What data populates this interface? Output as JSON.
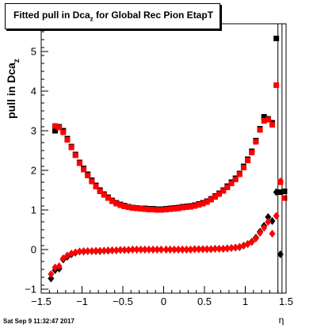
{
  "chart_data": {
    "type": "scatter",
    "title": {
      "main": "Fitted pull in Dca",
      "sub": "z",
      "rest": " for Global Rec Pion EtapT"
    },
    "ylabel": {
      "main": "pull in Dca",
      "sub": "z"
    },
    "xlabel": "η",
    "xlim": [
      -1.5,
      1.5
    ],
    "ylim": [
      -1.1,
      5.7
    ],
    "x_major_ticks": [
      -1.5,
      -1,
      -0.5,
      0,
      0.5,
      1,
      1.5
    ],
    "x_tick_labels": [
      "−1.5",
      "−1",
      "−0.5",
      "0",
      "0.5",
      "1",
      "1.5"
    ],
    "y_major_ticks": [
      -1,
      0,
      1,
      2,
      3,
      4,
      5
    ],
    "y_tick_labels": [
      "−1",
      "0",
      "1",
      "2",
      "3",
      "4",
      "5"
    ],
    "grid": false,
    "colors": {
      "black": "#000000",
      "red": "#ff0000",
      "guide": "#000000"
    },
    "series": [
      {
        "marker": "square",
        "color": "#000000",
        "points": [
          [
            -1.33,
            3.0
          ],
          [
            -1.28,
            3.1
          ],
          [
            -1.23,
            3.0
          ],
          [
            -1.18,
            2.8
          ],
          [
            -1.13,
            2.6
          ],
          [
            -1.08,
            2.4
          ],
          [
            -1.03,
            2.2
          ],
          [
            -0.98,
            2.05
          ],
          [
            -0.93,
            1.9
          ],
          [
            -0.88,
            1.75
          ],
          [
            -0.83,
            1.62
          ],
          [
            -0.78,
            1.5
          ],
          [
            -0.73,
            1.4
          ],
          [
            -0.68,
            1.32
          ],
          [
            -0.63,
            1.24
          ],
          [
            -0.58,
            1.18
          ],
          [
            -0.53,
            1.14
          ],
          [
            -0.48,
            1.11
          ],
          [
            -0.43,
            1.08
          ],
          [
            -0.38,
            1.06
          ],
          [
            -0.33,
            1.05
          ],
          [
            -0.28,
            1.04
          ],
          [
            -0.23,
            1.04
          ],
          [
            -0.18,
            1.03
          ],
          [
            -0.13,
            1.03
          ],
          [
            -0.08,
            1.02
          ],
          [
            -0.03,
            1.02
          ],
          [
            0.03,
            1.03
          ],
          [
            0.08,
            1.04
          ],
          [
            0.13,
            1.05
          ],
          [
            0.18,
            1.06
          ],
          [
            0.23,
            1.08
          ],
          [
            0.28,
            1.09
          ],
          [
            0.33,
            1.1
          ],
          [
            0.38,
            1.12
          ],
          [
            0.43,
            1.15
          ],
          [
            0.48,
            1.18
          ],
          [
            0.53,
            1.22
          ],
          [
            0.58,
            1.28
          ],
          [
            0.63,
            1.35
          ],
          [
            0.68,
            1.42
          ],
          [
            0.73,
            1.5
          ],
          [
            0.78,
            1.6
          ],
          [
            0.83,
            1.7
          ],
          [
            0.88,
            1.8
          ],
          [
            0.93,
            1.92
          ],
          [
            0.98,
            2.1
          ],
          [
            1.03,
            2.28
          ],
          [
            1.08,
            2.48
          ],
          [
            1.13,
            2.75
          ],
          [
            1.18,
            3.05
          ],
          [
            1.23,
            3.35
          ],
          [
            1.28,
            3.3
          ],
          [
            1.33,
            3.2
          ],
          [
            1.38,
            5.33
          ],
          [
            1.43,
            1.45
          ],
          [
            1.48,
            1.47
          ]
        ]
      },
      {
        "marker": "square",
        "color": "#ff0000",
        "points": [
          [
            -1.33,
            3.12
          ],
          [
            -1.28,
            3.08
          ],
          [
            -1.23,
            2.96
          ],
          [
            -1.18,
            2.77
          ],
          [
            -1.13,
            2.58
          ],
          [
            -1.08,
            2.38
          ],
          [
            -1.03,
            2.18
          ],
          [
            -0.98,
            2.02
          ],
          [
            -0.93,
            1.87
          ],
          [
            -0.88,
            1.72
          ],
          [
            -0.83,
            1.59
          ],
          [
            -0.78,
            1.47
          ],
          [
            -0.73,
            1.38
          ],
          [
            -0.68,
            1.3
          ],
          [
            -0.63,
            1.22
          ],
          [
            -0.58,
            1.16
          ],
          [
            -0.53,
            1.12
          ],
          [
            -0.48,
            1.09
          ],
          [
            -0.43,
            1.07
          ],
          [
            -0.38,
            1.05
          ],
          [
            -0.33,
            1.04
          ],
          [
            -0.28,
            1.03
          ],
          [
            -0.23,
            1.02
          ],
          [
            -0.18,
            1.01
          ],
          [
            -0.13,
            1.01
          ],
          [
            -0.08,
            1.0
          ],
          [
            -0.03,
            1.0
          ],
          [
            0.03,
            1.01
          ],
          [
            0.08,
            1.02
          ],
          [
            0.13,
            1.03
          ],
          [
            0.18,
            1.04
          ],
          [
            0.23,
            1.06
          ],
          [
            0.28,
            1.07
          ],
          [
            0.33,
            1.08
          ],
          [
            0.38,
            1.1
          ],
          [
            0.43,
            1.13
          ],
          [
            0.48,
            1.16
          ],
          [
            0.53,
            1.2
          ],
          [
            0.58,
            1.26
          ],
          [
            0.63,
            1.33
          ],
          [
            0.68,
            1.4
          ],
          [
            0.73,
            1.48
          ],
          [
            0.78,
            1.57
          ],
          [
            0.83,
            1.67
          ],
          [
            0.88,
            1.77
          ],
          [
            0.93,
            1.9
          ],
          [
            0.98,
            2.07
          ],
          [
            1.03,
            2.25
          ],
          [
            1.08,
            2.45
          ],
          [
            1.13,
            2.72
          ],
          [
            1.18,
            3.02
          ],
          [
            1.23,
            3.25
          ],
          [
            1.28,
            3.28
          ],
          [
            1.33,
            3.15
          ],
          [
            1.38,
            4.15
          ],
          [
            1.43,
            1.7
          ],
          [
            1.48,
            1.3
          ]
        ]
      },
      {
        "marker": "diamond",
        "color": "#000000",
        "points": [
          [
            -1.38,
            -0.73
          ],
          [
            -1.33,
            -0.52
          ],
          [
            -1.28,
            -0.48
          ],
          [
            -1.23,
            -0.25
          ],
          [
            -1.18,
            -0.18
          ],
          [
            -1.13,
            -0.12
          ],
          [
            -1.08,
            -0.08
          ],
          [
            -1.03,
            -0.05
          ],
          [
            -0.98,
            -0.05
          ],
          [
            -0.93,
            -0.04
          ],
          [
            -0.88,
            -0.04
          ],
          [
            -0.83,
            -0.04
          ],
          [
            -0.78,
            -0.04
          ],
          [
            -0.73,
            -0.03
          ],
          [
            -0.68,
            -0.03
          ],
          [
            -0.63,
            -0.02
          ],
          [
            -0.58,
            -0.02
          ],
          [
            -0.53,
            -0.01
          ],
          [
            -0.48,
            -0.01
          ],
          [
            -0.43,
            -0.01
          ],
          [
            -0.38,
            0.0
          ],
          [
            -0.33,
            0.0
          ],
          [
            -0.28,
            0.0
          ],
          [
            -0.23,
            0.0
          ],
          [
            -0.18,
            0.0
          ],
          [
            -0.13,
            0.0
          ],
          [
            -0.08,
            0.0
          ],
          [
            -0.03,
            0.0
          ],
          [
            0.03,
            0.0
          ],
          [
            0.08,
            0.0
          ],
          [
            0.13,
            0.0
          ],
          [
            0.18,
            0.0
          ],
          [
            0.23,
            0.0
          ],
          [
            0.28,
            0.0
          ],
          [
            0.33,
            0.0
          ],
          [
            0.38,
            0.01
          ],
          [
            0.43,
            0.01
          ],
          [
            0.48,
            0.01
          ],
          [
            0.53,
            0.01
          ],
          [
            0.58,
            0.01
          ],
          [
            0.63,
            0.02
          ],
          [
            0.68,
            0.02
          ],
          [
            0.73,
            0.02
          ],
          [
            0.78,
            0.03
          ],
          [
            0.83,
            0.04
          ],
          [
            0.88,
            0.05
          ],
          [
            0.93,
            0.06
          ],
          [
            0.98,
            0.1
          ],
          [
            1.03,
            0.14
          ],
          [
            1.08,
            0.2
          ],
          [
            1.13,
            0.3
          ],
          [
            1.18,
            0.45
          ],
          [
            1.23,
            0.6
          ],
          [
            1.28,
            0.82
          ],
          [
            1.33,
            0.72
          ],
          [
            1.38,
            1.45
          ],
          [
            1.43,
            -0.12
          ]
        ]
      },
      {
        "marker": "diamond",
        "color": "#ff0000",
        "points": [
          [
            -1.38,
            -0.62
          ],
          [
            -1.33,
            -0.45
          ],
          [
            -1.28,
            -0.42
          ],
          [
            -1.23,
            -0.22
          ],
          [
            -1.18,
            -0.15
          ],
          [
            -1.13,
            -0.1
          ],
          [
            -1.08,
            -0.07
          ],
          [
            -1.03,
            -0.05
          ],
          [
            -0.98,
            -0.04
          ],
          [
            -0.93,
            -0.04
          ],
          [
            -0.88,
            -0.04
          ],
          [
            -0.83,
            -0.03
          ],
          [
            -0.78,
            -0.03
          ],
          [
            -0.73,
            -0.03
          ],
          [
            -0.68,
            -0.02
          ],
          [
            -0.63,
            -0.02
          ],
          [
            -0.58,
            -0.02
          ],
          [
            -0.53,
            -0.01
          ],
          [
            -0.48,
            -0.01
          ],
          [
            -0.43,
            -0.01
          ],
          [
            -0.38,
            0.0
          ],
          [
            -0.33,
            0.0
          ],
          [
            -0.28,
            0.0
          ],
          [
            -0.23,
            0.0
          ],
          [
            -0.18,
            0.0
          ],
          [
            -0.13,
            0.0
          ],
          [
            -0.08,
            0.0
          ],
          [
            -0.03,
            0.0
          ],
          [
            0.03,
            0.0
          ],
          [
            0.08,
            0.0
          ],
          [
            0.13,
            0.0
          ],
          [
            0.18,
            0.0
          ],
          [
            0.23,
            0.0
          ],
          [
            0.28,
            0.0
          ],
          [
            0.33,
            0.0
          ],
          [
            0.38,
            0.01
          ],
          [
            0.43,
            0.01
          ],
          [
            0.48,
            0.01
          ],
          [
            0.53,
            0.01
          ],
          [
            0.58,
            0.01
          ],
          [
            0.63,
            0.02
          ],
          [
            0.68,
            0.02
          ],
          [
            0.73,
            0.02
          ],
          [
            0.78,
            0.03
          ],
          [
            0.83,
            0.04
          ],
          [
            0.88,
            0.05
          ],
          [
            0.93,
            0.07
          ],
          [
            0.98,
            0.1
          ],
          [
            1.03,
            0.14
          ],
          [
            1.08,
            0.19
          ],
          [
            1.13,
            0.28
          ],
          [
            1.18,
            0.42
          ],
          [
            1.23,
            0.55
          ],
          [
            1.28,
            0.7
          ],
          [
            1.33,
            0.4
          ],
          [
            1.38,
            0.85
          ],
          [
            1.43,
            1.72
          ]
        ]
      }
    ],
    "vertical_guides": [
      1.4,
      1.45,
      1.5
    ]
  },
  "timestamp": "Sat Sep  9 11:32:47 2017"
}
